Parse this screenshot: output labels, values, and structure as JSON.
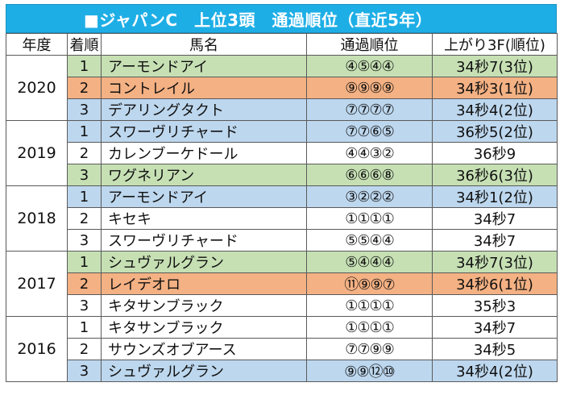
{
  "title": "■ジャパンC　上位3頭　通過順位（直近5年）",
  "headers": {
    "year": "年度",
    "rank": "着順",
    "horse": "馬名",
    "passing": "通過順位",
    "last3f": "上がり3F(順位)"
  },
  "colors": {
    "title_bg": "#1eaee6",
    "green": "#c6e0b4",
    "orange": "#f4b183",
    "blue": "#bdd7ee",
    "white": "#ffffff"
  },
  "groups": [
    {
      "year": "2020",
      "rows": [
        {
          "rank": "1",
          "horse": "アーモンドアイ",
          "passing": "④⑤④④",
          "last3f": "34秒7(3位)",
          "color": "green"
        },
        {
          "rank": "2",
          "horse": "コントレイル",
          "passing": "⑨⑨⑨⑨",
          "last3f": "34秒3(1位)",
          "color": "orange"
        },
        {
          "rank": "3",
          "horse": "デアリングタクト",
          "passing": "⑦⑦⑦⑦",
          "last3f": "34秒4(2位)",
          "color": "blue"
        }
      ]
    },
    {
      "year": "2019",
      "rows": [
        {
          "rank": "1",
          "horse": "スワーヴリチャード",
          "passing": "⑦⑦⑥⑤",
          "last3f": "36秒5(2位)",
          "color": "blue"
        },
        {
          "rank": "2",
          "horse": "カレンブーケドール",
          "passing": "④④③②",
          "last3f": "36秒9",
          "color": "white"
        },
        {
          "rank": "3",
          "horse": "ワグネリアン",
          "passing": "⑥⑥⑥⑧",
          "last3f": "36秒6(3位)",
          "color": "green"
        }
      ]
    },
    {
      "year": "2018",
      "rows": [
        {
          "rank": "1",
          "horse": "アーモンドアイ",
          "passing": "③②②②",
          "last3f": "34秒1(2位)",
          "color": "blue"
        },
        {
          "rank": "2",
          "horse": "キセキ",
          "passing": "①①①①",
          "last3f": "34秒7",
          "color": "white"
        },
        {
          "rank": "3",
          "horse": "スワーヴリチャード",
          "passing": "⑤⑤④④",
          "last3f": "34秒7",
          "color": "white"
        }
      ]
    },
    {
      "year": "2017",
      "rows": [
        {
          "rank": "1",
          "horse": "シュヴァルグラン",
          "passing": "⑤④④④",
          "last3f": "34秒7(3位)",
          "color": "green"
        },
        {
          "rank": "2",
          "horse": "レイデオロ",
          "passing": "⑪⑨⑨⑦",
          "last3f": "34秒6(1位)",
          "color": "orange"
        },
        {
          "rank": "3",
          "horse": "キタサンブラック",
          "passing": "①①①①",
          "last3f": "35秒3",
          "color": "white"
        }
      ]
    },
    {
      "year": "2016",
      "rows": [
        {
          "rank": "1",
          "horse": "キタサンブラック",
          "passing": "①①①①",
          "last3f": "34秒7",
          "color": "white"
        },
        {
          "rank": "2",
          "horse": "サウンズオブアース",
          "passing": "⑦⑦⑨⑨",
          "last3f": "34秒5",
          "color": "white"
        },
        {
          "rank": "3",
          "horse": "シュヴァルグラン",
          "passing": "⑨⑨⑫⑩",
          "last3f": "34秒4(2位)",
          "color": "blue"
        }
      ]
    }
  ]
}
